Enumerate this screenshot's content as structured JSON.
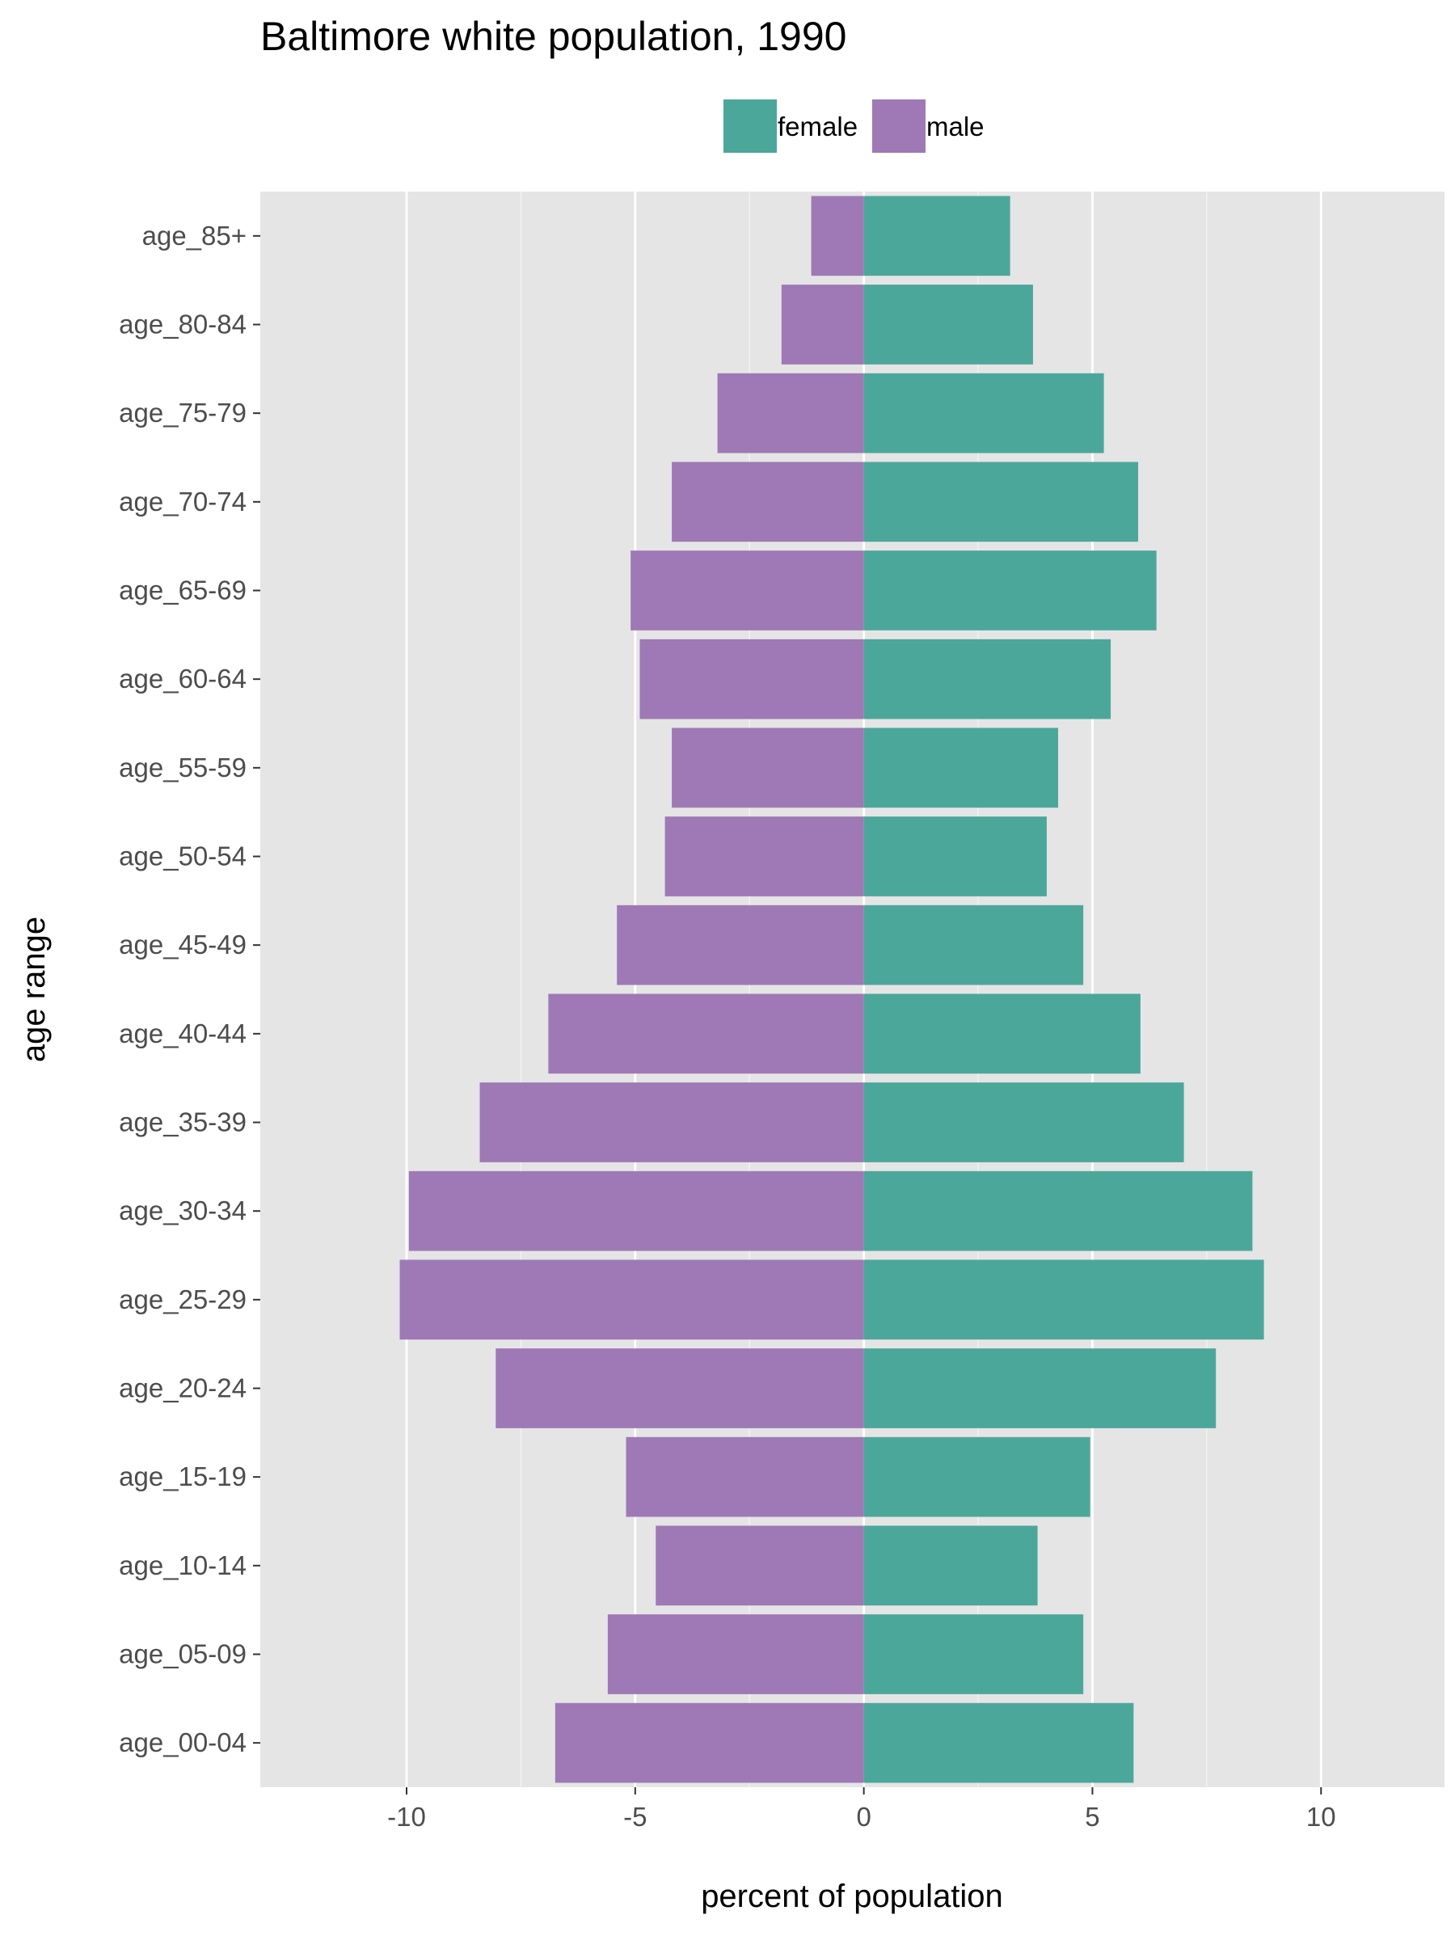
{
  "chart_data": {
    "type": "bar",
    "orientation": "horizontal",
    "title": "Baltimore white population, 1990",
    "xlabel": "percent of population",
    "ylabel": "age range",
    "xlim": [
      -13.2,
      12.7
    ],
    "xticks": [
      -10,
      -5,
      0,
      5,
      10
    ],
    "xtick_labels": [
      "-10",
      "-5",
      "0",
      "5",
      "10"
    ],
    "grid": true,
    "legend_position": "top",
    "categories": [
      "age_85+",
      "age_80-84",
      "age_75-79",
      "age_70-74",
      "age_65-69",
      "age_60-64",
      "age_55-59",
      "age_50-54",
      "age_45-49",
      "age_40-44",
      "age_35-39",
      "age_30-34",
      "age_25-29",
      "age_20-24",
      "age_15-19",
      "age_10-14",
      "age_05-09",
      "age_00-04"
    ],
    "series": [
      {
        "name": "female",
        "color": "#4ca79b",
        "values": [
          3.2,
          3.7,
          5.25,
          6.0,
          6.4,
          5.4,
          4.25,
          4.0,
          4.8,
          6.05,
          7.0,
          8.5,
          8.75,
          7.7,
          4.95,
          3.8,
          4.8,
          5.9
        ]
      },
      {
        "name": "male",
        "color": "#9e79b6",
        "values": [
          -1.15,
          -1.8,
          -3.2,
          -4.2,
          -5.1,
          -4.9,
          -4.2,
          -4.35,
          -5.4,
          -6.9,
          -8.4,
          -9.95,
          -10.15,
          -8.05,
          -5.2,
          -4.55,
          -5.6,
          -6.75
        ]
      }
    ]
  }
}
